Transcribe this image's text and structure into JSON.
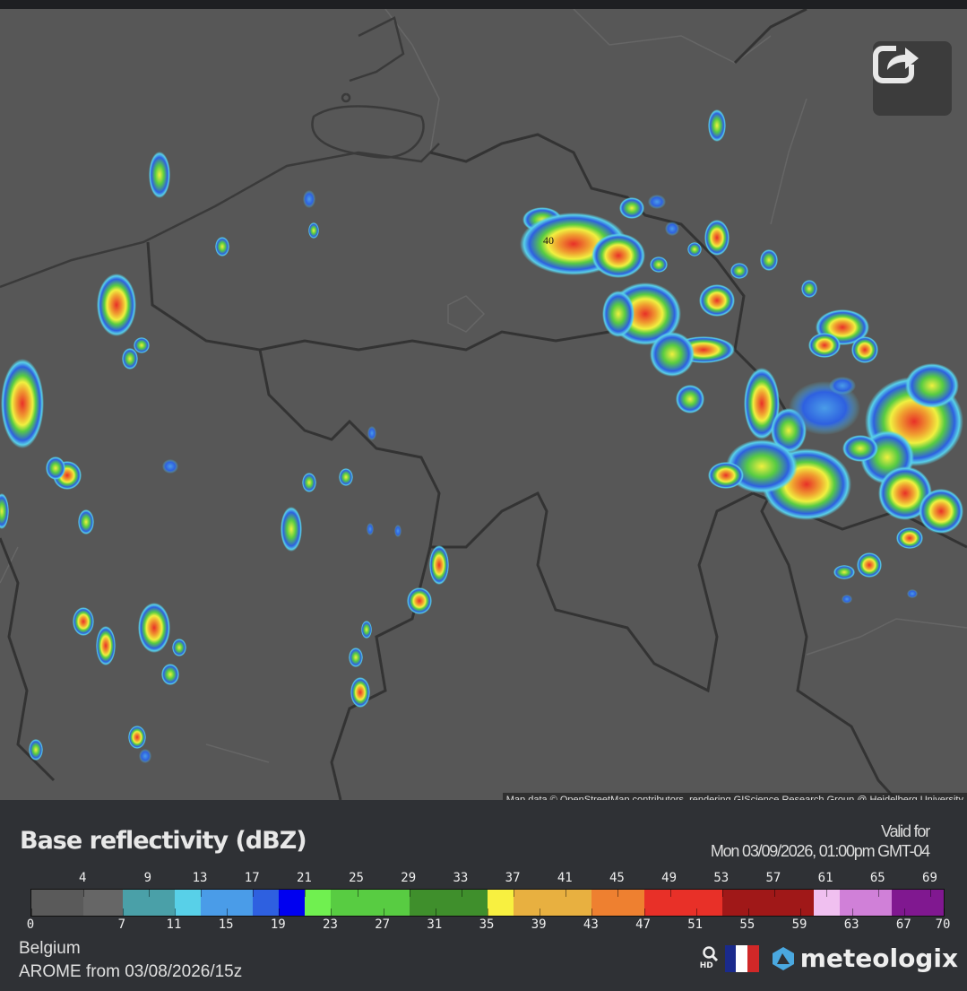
{
  "map": {
    "attribution": "Map data © OpenStreetMap contributors, rendering GIScience Research Group @ Heidelberg University",
    "cell_label": "40",
    "share_icon": "share-icon",
    "background_color": "#575757"
  },
  "legend": {
    "title": "Base reflectivity (dBZ)",
    "valid_for_label": "Valid for",
    "valid_time": "Mon 03/09/2026, 01:00pm GMT-04",
    "region": "Belgium",
    "model_run": "AROME from 03/08/2026/15z",
    "brand": "meteologix",
    "hd_label": "HD",
    "scale_min": 0,
    "scale_max": 70,
    "top_ticks": [
      "4",
      "9",
      "13",
      "17",
      "21",
      "25",
      "29",
      "33",
      "37",
      "41",
      "45",
      "49",
      "53",
      "57",
      "61",
      "65",
      "69"
    ],
    "bottom_ticks": [
      "0",
      "7",
      "11",
      "15",
      "19",
      "23",
      "27",
      "31",
      "35",
      "39",
      "43",
      "47",
      "51",
      "55",
      "59",
      "63",
      "67",
      "70"
    ],
    "color_stops": [
      {
        "from": 0,
        "to": 4,
        "color": "#5a5a5a"
      },
      {
        "from": 4,
        "to": 7,
        "color": "#666666"
      },
      {
        "from": 7,
        "to": 11,
        "color": "#4aa0a8"
      },
      {
        "from": 11,
        "to": 13,
        "color": "#58d0e8"
      },
      {
        "from": 13,
        "to": 17,
        "color": "#4a9ce8"
      },
      {
        "from": 17,
        "to": 19,
        "color": "#2e60e0"
      },
      {
        "from": 19,
        "to": 21,
        "color": "#0000f0"
      },
      {
        "from": 21,
        "to": 23,
        "color": "#70f050"
      },
      {
        "from": 23,
        "to": 29,
        "color": "#58cc42"
      },
      {
        "from": 29,
        "to": 35,
        "color": "#3f8f2c"
      },
      {
        "from": 35,
        "to": 37,
        "color": "#f8f040"
      },
      {
        "from": 37,
        "to": 43,
        "color": "#e8b040"
      },
      {
        "from": 43,
        "to": 47,
        "color": "#ee8030"
      },
      {
        "from": 47,
        "to": 53,
        "color": "#e83028"
      },
      {
        "from": 53,
        "to": 60,
        "color": "#a01818"
      },
      {
        "from": 60,
        "to": 62,
        "color": "#f0c0f0"
      },
      {
        "from": 62,
        "to": 66,
        "color": "#d080d8"
      },
      {
        "from": 66,
        "to": 70,
        "color": "#801890"
      }
    ]
  }
}
